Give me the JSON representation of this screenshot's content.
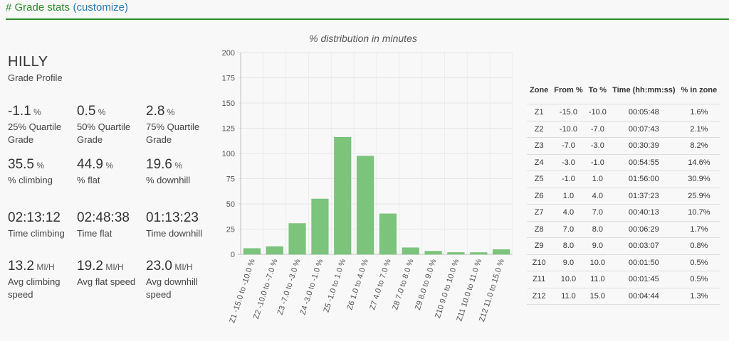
{
  "header": {
    "title": "# Grade stats",
    "link": "(customize)"
  },
  "profile": {
    "title": "HILLY",
    "subtitle": "Grade Profile"
  },
  "stats": [
    {
      "value": "-1.1",
      "unit": "%",
      "label": "25% Quartile Grade"
    },
    {
      "value": "0.5",
      "unit": "%",
      "label": "50% Quartile Grade"
    },
    {
      "value": "2.8",
      "unit": "%",
      "label": "75% Quartile Grade"
    },
    {
      "value": "35.5",
      "unit": "%",
      "label": "% climbing"
    },
    {
      "value": "44.9",
      "unit": "%",
      "label": "% flat"
    },
    {
      "value": "19.6",
      "unit": "%",
      "label": "% downhill"
    },
    {
      "value": "02:13:12",
      "unit": "",
      "label": "Time climbing"
    },
    {
      "value": "02:48:38",
      "unit": "",
      "label": "Time flat"
    },
    {
      "value": "01:13:23",
      "unit": "",
      "label": "Time downhill"
    },
    {
      "value": "13.2",
      "unit": "MI/H",
      "label": "Avg climbing speed"
    },
    {
      "value": "19.2",
      "unit": "MI/H",
      "label": "Avg flat speed"
    },
    {
      "value": "23.0",
      "unit": "MI/H",
      "label": "Avg downhill speed"
    }
  ],
  "chart_data": {
    "type": "bar",
    "title": "% distribution in minutes",
    "categories": [
      "Z1 -15.0 to -10.0 %",
      "Z2 -10.0 to -7.0 %",
      "Z3 -7.0 to -3.0 %",
      "Z4 -3.0 to -1.0 %",
      "Z5 -1.0 to 1.0 %",
      "Z6 1.0 to 4.0 %",
      "Z7 4.0 to 7.0 %",
      "Z8 7.0 to 8.0 %",
      "Z9 8.0 to 9.0 %",
      "Z10 9.0 to 10.0 %",
      "Z11 10.0 to 11.0 %",
      "Z12 11.0 to 15.0 %"
    ],
    "values": [
      5.8,
      7.7,
      30.6,
      54.9,
      116.0,
      97.4,
      40.2,
      6.5,
      3.1,
      1.8,
      1.75,
      4.7
    ],
    "yticks": [
      "0",
      "25",
      "50",
      "75",
      "100",
      "125",
      "150",
      "175",
      "200"
    ],
    "ylim": [
      0,
      200
    ],
    "grid": true,
    "color": "#7cc47c"
  },
  "zone_table": {
    "headers": [
      "Zone",
      "From %",
      "To %",
      "Time (hh:mm:ss)",
      "% in zone"
    ],
    "rows": [
      [
        "Z1",
        "-15.0",
        "-10.0",
        "00:05:48",
        "1.6%"
      ],
      [
        "Z2",
        "-10.0",
        "-7.0",
        "00:07:43",
        "2.1%"
      ],
      [
        "Z3",
        "-7.0",
        "-3.0",
        "00:30:39",
        "8.2%"
      ],
      [
        "Z4",
        "-3.0",
        "-1.0",
        "00:54:55",
        "14.6%"
      ],
      [
        "Z5",
        "-1.0",
        "1.0",
        "01:56:00",
        "30.9%"
      ],
      [
        "Z6",
        "1.0",
        "4.0",
        "01:37:23",
        "25.9%"
      ],
      [
        "Z7",
        "4.0",
        "7.0",
        "00:40:13",
        "10.7%"
      ],
      [
        "Z8",
        "7.0",
        "8.0",
        "00:06:29",
        "1.7%"
      ],
      [
        "Z9",
        "8.0",
        "9.0",
        "00:03:07",
        "0.8%"
      ],
      [
        "Z10",
        "9.0",
        "10.0",
        "00:01:50",
        "0.5%"
      ],
      [
        "Z11",
        "10.0",
        "11.0",
        "00:01:45",
        "0.5%"
      ],
      [
        "Z12",
        "11.0",
        "15.0",
        "00:04:44",
        "1.3%"
      ]
    ]
  }
}
